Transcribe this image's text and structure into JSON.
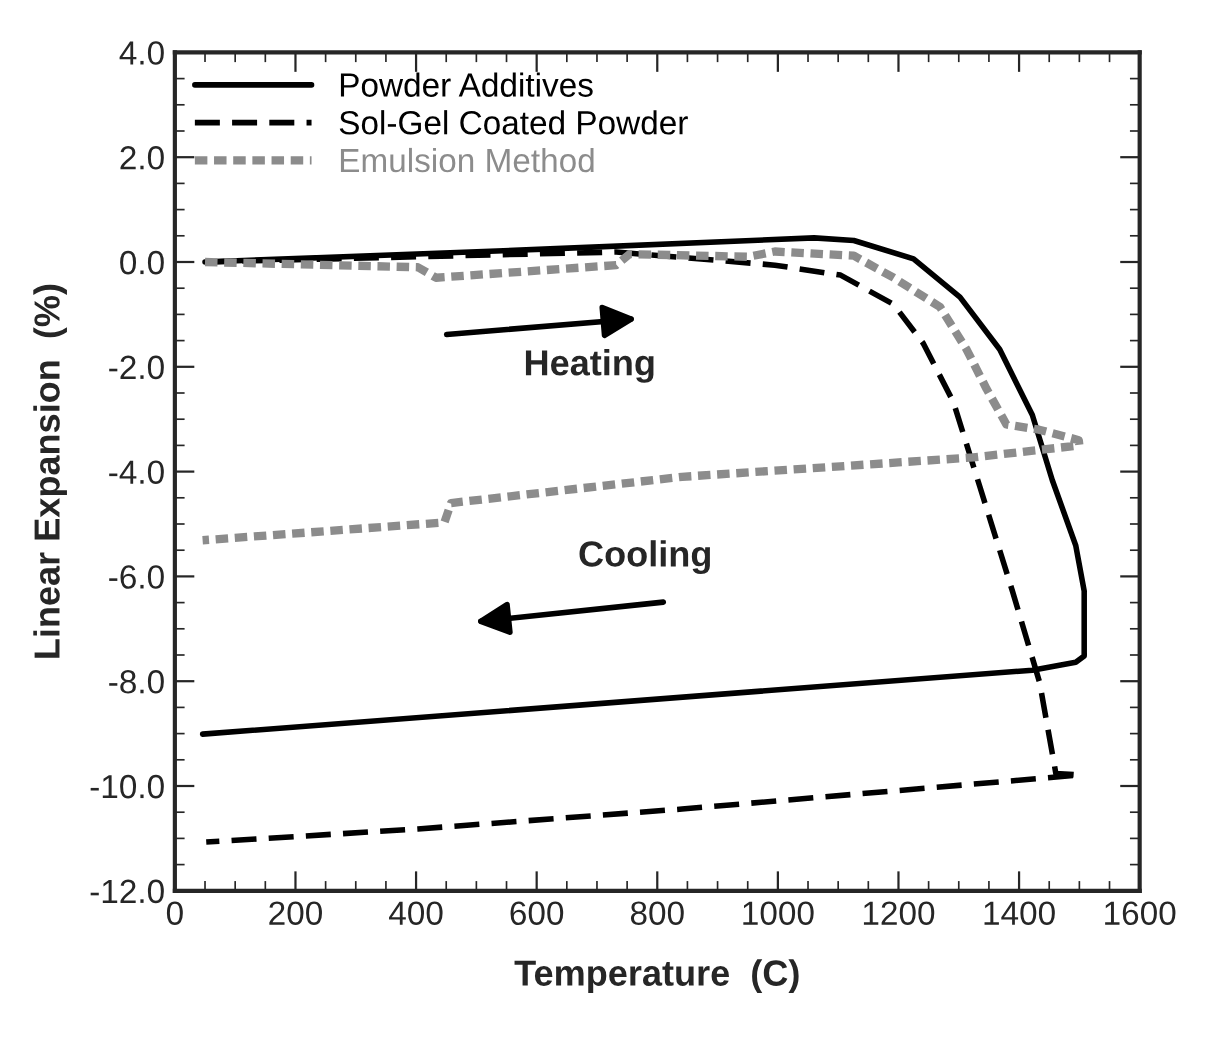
{
  "chart_data": {
    "type": "line",
    "xlabel": "Temperature  (C)",
    "ylabel": "Linear Expansion  (%)",
    "xlim": [
      0,
      1600
    ],
    "xticks": [
      0,
      200,
      400,
      600,
      800,
      1000,
      1200,
      1400,
      1600
    ],
    "ylim": [
      -12,
      4
    ],
    "yticks": [
      {
        "value": -12,
        "label": "-12.0"
      },
      {
        "value": -10,
        "label": "-10.0"
      },
      {
        "value": -8,
        "label": "-8.0"
      },
      {
        "value": -6,
        "label": "-6.0"
      },
      {
        "value": -4,
        "label": "-4.0"
      },
      {
        "value": -2,
        "label": "-2.0"
      },
      {
        "value": 0,
        "label": "0.0"
      },
      {
        "value": 2,
        "label": "2.0"
      },
      {
        "value": 4,
        "label": "4.0"
      }
    ],
    "grid": false,
    "legend": "top left",
    "marker": "none",
    "series": [
      {
        "name": "Powder Additives",
        "color": "#000000",
        "line_style": "solid",
        "x": [
          50,
          622,
          1060,
          1126,
          1225,
          1302,
          1368,
          1422,
          1455,
          1494,
          1508,
          1508,
          1494,
          1422,
          46
        ],
        "values": [
          0.0,
          0.25,
          0.46,
          0.41,
          0.06,
          -0.67,
          -1.67,
          -2.92,
          -4.16,
          -5.41,
          -6.28,
          -7.52,
          -7.64,
          -7.79,
          -9.01
        ]
      },
      {
        "name": "Sol-Gel Coated Powder",
        "color": "#000000",
        "line_style": "dashed",
        "x": [
          50,
          400,
          732,
          995,
          1104,
          1192,
          1241,
          1291,
          1335,
          1389,
          1434,
          1461,
          1500,
          1379,
          841,
          403,
          52
        ],
        "values": [
          0.0,
          0.1,
          0.19,
          -0.06,
          -0.25,
          -0.81,
          -1.55,
          -2.67,
          -4.29,
          -6.28,
          -8.02,
          -9.76,
          -9.79,
          -9.91,
          -10.44,
          -10.82,
          -11.07
        ]
      },
      {
        "name": "Emulsion Method",
        "color": "#8c8c8c",
        "line_style": "dotted",
        "x": [
          50,
          403,
          433,
          732,
          754,
          951,
          995,
          1126,
          1192,
          1269,
          1313,
          1346,
          1379,
          1433,
          1499,
          1500,
          1324,
          841,
          458,
          447,
          46
        ],
        "values": [
          0.0,
          -0.1,
          -0.3,
          -0.06,
          0.15,
          0.1,
          0.2,
          0.12,
          -0.3,
          -0.86,
          -1.67,
          -2.42,
          -3.1,
          -3.2,
          -3.4,
          -3.5,
          -3.73,
          -4.1,
          -4.6,
          -4.97,
          -5.31
        ]
      }
    ],
    "annotations": [
      "Heating",
      "Cooling"
    ]
  }
}
